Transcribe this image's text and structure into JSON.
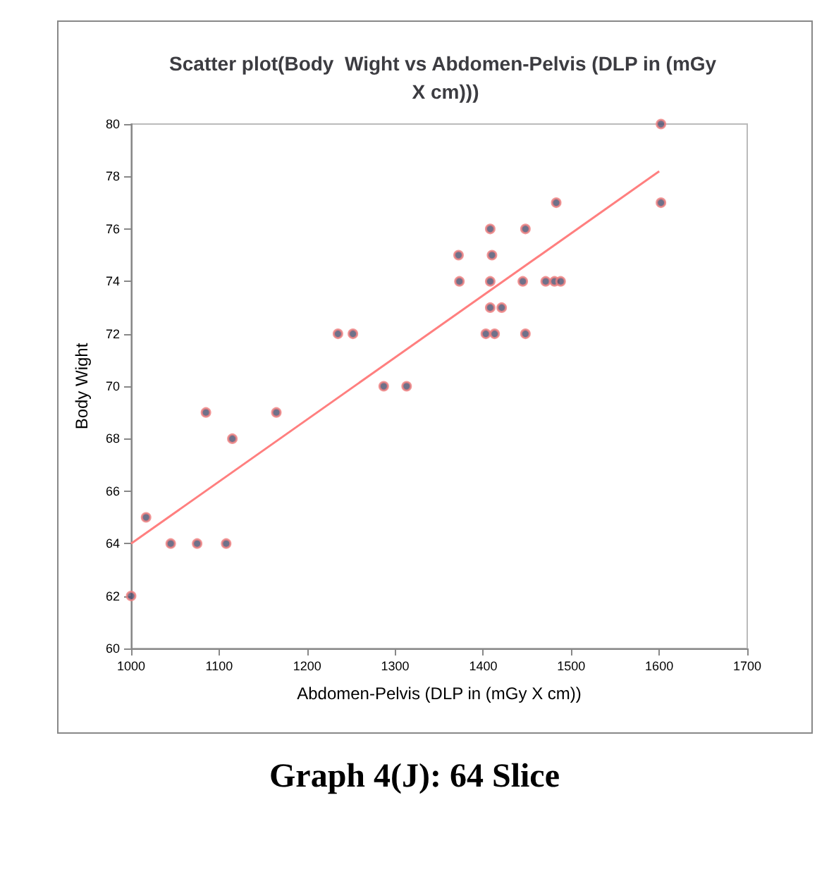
{
  "chart_data": {
    "type": "scatter",
    "title": "Scatter plot(Body  Wight vs Abdomen-Pelvis (DLP in (mGy X cm)))",
    "xlabel": "Abdomen-Pelvis (DLP in (mGy X cm))",
    "ylabel": "Body Wight",
    "annotations": [
      "Graph 4(J): 64 Slice"
    ],
    "xlim": [
      1000,
      1700
    ],
    "xticks": [
      1000,
      1100,
      1200,
      1300,
      1400,
      1500,
      1600,
      1700
    ],
    "ylim": [
      60,
      80
    ],
    "yticks": [
      60,
      62,
      64,
      66,
      68,
      70,
      72,
      74,
      76,
      78,
      80
    ],
    "grid": false,
    "marker": "circle",
    "series": [
      {
        "color": "#4b4e6d",
        "x": [
          1000,
          1017,
          1045,
          1075,
          1085,
          1108,
          1115,
          1165,
          1235,
          1252,
          1287,
          1313,
          1372,
          1373,
          1403,
          1408,
          1408,
          1410,
          1408,
          1421,
          1413,
          1448,
          1445,
          1448,
          1471,
          1483,
          1481,
          1488,
          1602,
          1602
        ],
        "values": [
          62,
          65,
          64,
          64,
          69,
          64,
          68,
          69,
          72,
          72,
          70,
          70,
          75,
          74,
          72,
          74,
          76,
          75,
          73,
          73,
          72,
          76,
          74,
          72,
          74,
          77,
          74,
          74,
          80,
          77
        ]
      },
      {
        "type": "line",
        "marker": "none",
        "color": "#ff7f7f",
        "x": [
          1000,
          1600
        ],
        "values": [
          64,
          78.2
        ]
      }
    ]
  }
}
